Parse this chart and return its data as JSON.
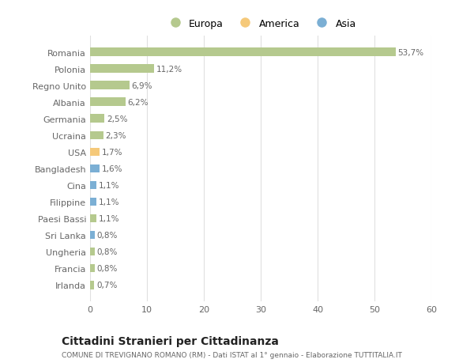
{
  "countries": [
    "Romania",
    "Polonia",
    "Regno Unito",
    "Albania",
    "Germania",
    "Ucraina",
    "USA",
    "Bangladesh",
    "Cina",
    "Filippine",
    "Paesi Bassi",
    "Sri Lanka",
    "Ungheria",
    "Francia",
    "Irlanda"
  ],
  "values": [
    53.7,
    11.2,
    6.9,
    6.2,
    2.5,
    2.3,
    1.7,
    1.6,
    1.1,
    1.1,
    1.1,
    0.8,
    0.8,
    0.8,
    0.7
  ],
  "labels": [
    "53,7%",
    "11,2%",
    "6,9%",
    "6,2%",
    "2,5%",
    "2,3%",
    "1,7%",
    "1,6%",
    "1,1%",
    "1,1%",
    "1,1%",
    "0,8%",
    "0,8%",
    "0,8%",
    "0,7%"
  ],
  "categories": [
    "Europa",
    "Europa",
    "Europa",
    "Europa",
    "Europa",
    "Europa",
    "America",
    "Asia",
    "Asia",
    "Asia",
    "Europa",
    "Asia",
    "Europa",
    "Europa",
    "Europa"
  ],
  "colors": {
    "Europa": "#b5c98e",
    "America": "#f5c97a",
    "Asia": "#7bafd4"
  },
  "legend_labels": [
    "Europa",
    "America",
    "Asia"
  ],
  "legend_colors": [
    "#b5c98e",
    "#f5c97a",
    "#7bafd4"
  ],
  "xlim": [
    0,
    60
  ],
  "xticks": [
    0,
    10,
    20,
    30,
    40,
    50,
    60
  ],
  "title": "Cittadini Stranieri per Cittadinanza",
  "subtitle": "COMUNE DI TREVIGNANO ROMANO (RM) - Dati ISTAT al 1° gennaio - Elaborazione TUTTITALIA.IT",
  "background_color": "#ffffff",
  "bar_height": 0.5,
  "grid_color": "#e0e0e0",
  "text_color": "#666666",
  "title_color": "#222222",
  "label_fontsize": 7.5,
  "ytick_fontsize": 8,
  "xtick_fontsize": 8
}
